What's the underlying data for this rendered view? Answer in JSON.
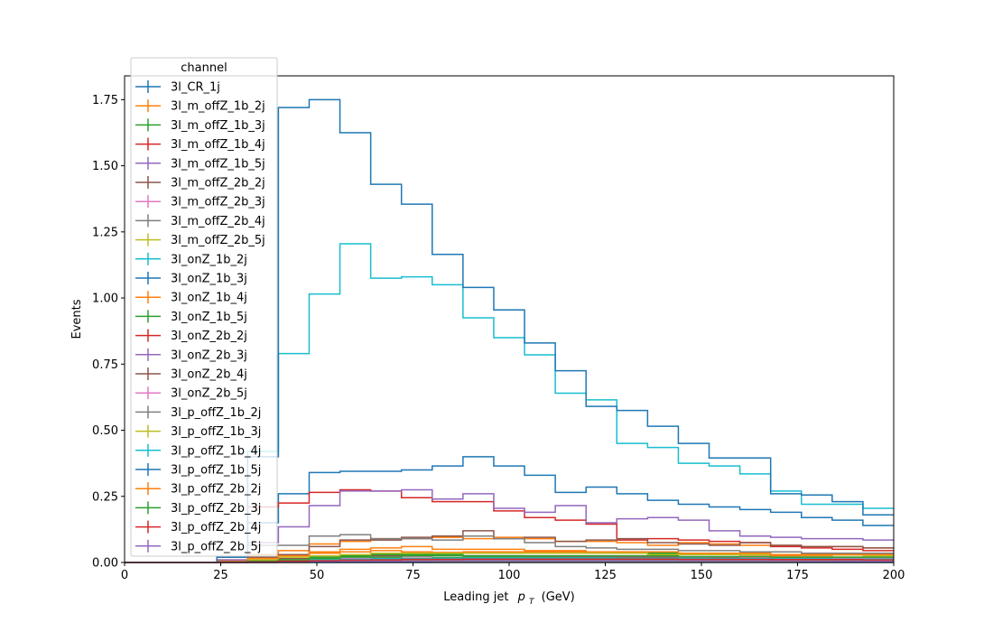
{
  "chart_data": {
    "type": "line",
    "drawstyle": "steps",
    "xlabel": "Leading jet",
    "xlabel_math": "p",
    "xlabel_math_sub": "T",
    "xlabel_unit": "(GeV)",
    "ylabel": "Events",
    "xlim": [
      0,
      200
    ],
    "ylim": [
      0,
      1.84
    ],
    "xticks": [
      "0",
      "25",
      "50",
      "75",
      "100",
      "125",
      "150",
      "175",
      "200"
    ],
    "yticks": [
      "0.00",
      "0.25",
      "0.50",
      "0.75",
      "1.00",
      "1.25",
      "1.50",
      "1.75"
    ],
    "grid": false,
    "legend_title": "channel",
    "legend_position": "top-left",
    "bin_edges": [
      0,
      8,
      16,
      24,
      32,
      40,
      48,
      56,
      64,
      72,
      80,
      88,
      96,
      104,
      112,
      120,
      128,
      136,
      144,
      152,
      160,
      168,
      176,
      184,
      192,
      200
    ],
    "series": [
      {
        "name": "3l_CR_1j",
        "color": "#1f77b4",
        "values": [
          0,
          0,
          0,
          0,
          0,
          0,
          0,
          0,
          0,
          0,
          0,
          0,
          0,
          0,
          0,
          0,
          0,
          0,
          0,
          0,
          0,
          0,
          0,
          0,
          0
        ]
      },
      {
        "name": "3l_m_offZ_1b_2j",
        "color": "#ff7f0e",
        "values": [
          0,
          0,
          0,
          0.005,
          0.02,
          0.03,
          0.035,
          0.04,
          0.045,
          0.04,
          0.038,
          0.04,
          0.04,
          0.04,
          0.04,
          0.035,
          0.035,
          0.03,
          0.03,
          0.03,
          0.028,
          0.025,
          0.025,
          0.02,
          0.02
        ]
      },
      {
        "name": "3l_m_offZ_1b_3j",
        "color": "#2ca02c",
        "values": [
          0,
          0,
          0,
          0,
          0.003,
          0.006,
          0.01,
          0.012,
          0.015,
          0.016,
          0.018,
          0.02,
          0.02,
          0.02,
          0.02,
          0.02,
          0.02,
          0.019,
          0.018,
          0.018,
          0.017,
          0.016,
          0.015,
          0.014,
          0.013
        ]
      },
      {
        "name": "3l_m_offZ_1b_4j",
        "color": "#d62728",
        "values": [
          0,
          0,
          0,
          0,
          0,
          0.002,
          0.003,
          0.005,
          0.006,
          0.008,
          0.009,
          0.01,
          0.011,
          0.012,
          0.012,
          0.012,
          0.012,
          0.012,
          0.012,
          0.012,
          0.011,
          0.011,
          0.01,
          0.01,
          0.01
        ]
      },
      {
        "name": "3l_m_offZ_1b_5j",
        "color": "#9467bd",
        "values": [
          0,
          0,
          0,
          0,
          0,
          0,
          0.001,
          0.002,
          0.003,
          0.004,
          0.004,
          0.005,
          0.005,
          0.006,
          0.006,
          0.006,
          0.006,
          0.006,
          0.006,
          0.006,
          0.006,
          0.006,
          0.005,
          0.005,
          0.005
        ]
      },
      {
        "name": "3l_m_offZ_2b_2j",
        "color": "#8c564b",
        "values": [
          0,
          0,
          0,
          0.002,
          0.01,
          0.015,
          0.02,
          0.022,
          0.025,
          0.025,
          0.025,
          0.025,
          0.025,
          0.024,
          0.023,
          0.022,
          0.021,
          0.02,
          0.019,
          0.018,
          0.017,
          0.016,
          0.015,
          0.014,
          0.013
        ]
      },
      {
        "name": "3l_m_offZ_2b_3j",
        "color": "#e377c2",
        "values": [
          0,
          0,
          0,
          0,
          0.003,
          0.006,
          0.008,
          0.01,
          0.012,
          0.013,
          0.014,
          0.015,
          0.015,
          0.015,
          0.015,
          0.015,
          0.015,
          0.015,
          0.014,
          0.014,
          0.013,
          0.013,
          0.012,
          0.012,
          0.011
        ]
      },
      {
        "name": "3l_m_offZ_2b_4j",
        "color": "#7f7f7f",
        "values": [
          0,
          0,
          0,
          0,
          0,
          0.002,
          0.004,
          0.005,
          0.006,
          0.007,
          0.008,
          0.008,
          0.009,
          0.009,
          0.009,
          0.009,
          0.009,
          0.009,
          0.009,
          0.009,
          0.009,
          0.008,
          0.008,
          0.008,
          0.008
        ]
      },
      {
        "name": "3l_m_offZ_2b_5j",
        "color": "#bcbd22",
        "values": [
          0,
          0,
          0,
          0,
          0,
          0,
          0.001,
          0.002,
          0.002,
          0.003,
          0.003,
          0.003,
          0.004,
          0.004,
          0.004,
          0.004,
          0.004,
          0.004,
          0.004,
          0.004,
          0.004,
          0.004,
          0.004,
          0.003,
          0.003
        ]
      },
      {
        "name": "3l_onZ_1b_2j",
        "color": "#17becf",
        "values": [
          0,
          0,
          0,
          0.02,
          0.42,
          0.79,
          1.015,
          1.205,
          1.075,
          1.08,
          1.05,
          0.925,
          0.85,
          0.785,
          0.64,
          0.615,
          0.45,
          0.435,
          0.375,
          0.365,
          0.335,
          0.27,
          0.22,
          0.22,
          0.205
        ]
      },
      {
        "name": "3l_onZ_1b_3j",
        "color": "#1f77b4",
        "values": [
          0,
          0,
          0,
          0.02,
          0.15,
          0.26,
          0.34,
          0.345,
          0.345,
          0.35,
          0.365,
          0.4,
          0.365,
          0.33,
          0.265,
          0.285,
          0.26,
          0.235,
          0.22,
          0.21,
          0.2,
          0.19,
          0.17,
          0.16,
          0.14
        ]
      },
      {
        "name": "3l_onZ_1b_4j",
        "color": "#ff7f0e",
        "values": [
          0,
          0,
          0,
          0.01,
          0.03,
          0.045,
          0.07,
          0.08,
          0.09,
          0.09,
          0.095,
          0.09,
          0.095,
          0.09,
          0.08,
          0.08,
          0.075,
          0.065,
          0.075,
          0.07,
          0.065,
          0.065,
          0.06,
          0.06,
          0.055
        ]
      },
      {
        "name": "3l_onZ_1b_5j",
        "color": "#2ca02c",
        "values": [
          0,
          0,
          0,
          0,
          0.005,
          0.01,
          0.02,
          0.025,
          0.03,
          0.03,
          0.03,
          0.035,
          0.035,
          0.035,
          0.035,
          0.035,
          0.035,
          0.035,
          0.035,
          0.035,
          0.035,
          0.03,
          0.03,
          0.03,
          0.03
        ]
      },
      {
        "name": "3l_onZ_2b_2j",
        "color": "#d62728",
        "values": [
          0,
          0,
          0,
          0.02,
          0.21,
          0.225,
          0.265,
          0.275,
          0.27,
          0.245,
          0.23,
          0.23,
          0.195,
          0.17,
          0.16,
          0.145,
          0.085,
          0.09,
          0.085,
          0.08,
          0.075,
          0.06,
          0.055,
          0.05,
          0.045
        ]
      },
      {
        "name": "3l_onZ_2b_3j",
        "color": "#9467bd",
        "values": [
          0,
          0,
          0,
          0.01,
          0.075,
          0.135,
          0.215,
          0.27,
          0.27,
          0.275,
          0.24,
          0.26,
          0.205,
          0.19,
          0.215,
          0.15,
          0.165,
          0.17,
          0.16,
          0.12,
          0.1,
          0.095,
          0.09,
          0.09,
          0.085
        ]
      },
      {
        "name": "3l_onZ_2b_4j",
        "color": "#8c564b",
        "values": [
          0,
          0,
          0,
          0,
          0.02,
          0.03,
          0.06,
          0.085,
          0.085,
          0.095,
          0.1,
          0.12,
          0.09,
          0.095,
          0.08,
          0.085,
          0.09,
          0.075,
          0.07,
          0.065,
          0.075,
          0.065,
          0.06,
          0.06,
          0.055
        ]
      },
      {
        "name": "3l_onZ_2b_5j",
        "color": "#e377c2",
        "values": [
          0,
          0,
          0,
          0,
          0.003,
          0.005,
          0.01,
          0.015,
          0.02,
          0.022,
          0.025,
          0.025,
          0.025,
          0.025,
          0.025,
          0.025,
          0.025,
          0.025,
          0.022,
          0.022,
          0.02,
          0.02,
          0.02,
          0.018,
          0.018
        ]
      },
      {
        "name": "3l_p_offZ_1b_2j",
        "color": "#7f7f7f",
        "values": [
          0,
          0,
          0,
          0.02,
          0.065,
          0.065,
          0.1,
          0.105,
          0.09,
          0.09,
          0.085,
          0.1,
          0.09,
          0.075,
          0.06,
          0.055,
          0.05,
          0.05,
          0.045,
          0.045,
          0.04,
          0.04,
          0.035,
          0.035,
          0.035
        ]
      },
      {
        "name": "3l_p_offZ_1b_3j",
        "color": "#bcbd22",
        "values": [
          0,
          0,
          0,
          0,
          0.01,
          0.02,
          0.025,
          0.03,
          0.035,
          0.035,
          0.035,
          0.035,
          0.035,
          0.035,
          0.035,
          0.035,
          0.035,
          0.03,
          0.03,
          0.03,
          0.03,
          0.03,
          0.028,
          0.028,
          0.025
        ]
      },
      {
        "name": "3l_p_offZ_1b_4j",
        "color": "#17becf",
        "values": [
          0,
          0,
          0,
          0,
          0.004,
          0.007,
          0.01,
          0.012,
          0.014,
          0.015,
          0.016,
          0.017,
          0.017,
          0.017,
          0.017,
          0.017,
          0.016,
          0.016,
          0.016,
          0.015,
          0.015,
          0.014,
          0.014,
          0.013,
          0.013
        ]
      },
      {
        "name": "3l_p_offZ_1b_5j",
        "color": "#1f77b4",
        "values": [
          0,
          0,
          0,
          0.02,
          0.4,
          1.72,
          1.75,
          1.625,
          1.43,
          1.355,
          1.165,
          1.04,
          0.955,
          0.83,
          0.725,
          0.59,
          0.575,
          0.515,
          0.45,
          0.395,
          0.395,
          0.26,
          0.255,
          0.23,
          0.18
        ]
      },
      {
        "name": "3l_p_offZ_2b_2j",
        "color": "#ff7f0e",
        "values": [
          0,
          0,
          0,
          0,
          0.015,
          0.025,
          0.04,
          0.05,
          0.055,
          0.06,
          0.05,
          0.05,
          0.05,
          0.045,
          0.045,
          0.04,
          0.04,
          0.04,
          0.035,
          0.035,
          0.035,
          0.03,
          0.03,
          0.03,
          0.03
        ]
      },
      {
        "name": "3l_p_offZ_2b_3j",
        "color": "#2ca02c",
        "values": [
          0,
          0,
          0,
          0,
          0.005,
          0.01,
          0.015,
          0.02,
          0.02,
          0.025,
          0.025,
          0.025,
          0.025,
          0.025,
          0.025,
          0.025,
          0.025,
          0.025,
          0.022,
          0.022,
          0.022,
          0.02,
          0.02,
          0.02,
          0.02
        ]
      },
      {
        "name": "3l_p_offZ_2b_4j",
        "color": "#d62728",
        "values": [
          0,
          0,
          0,
          0,
          0.002,
          0.005,
          0.007,
          0.009,
          0.01,
          0.012,
          0.012,
          0.013,
          0.013,
          0.013,
          0.013,
          0.013,
          0.013,
          0.013,
          0.012,
          0.012,
          0.012,
          0.011,
          0.011,
          0.011,
          0.01
        ]
      },
      {
        "name": "3l_p_offZ_2b_5j",
        "color": "#9467bd",
        "values": [
          0,
          0,
          0,
          0,
          0,
          0.001,
          0.002,
          0.003,
          0.004,
          0.004,
          0.005,
          0.005,
          0.005,
          0.005,
          0.005,
          0.005,
          0.005,
          0.005,
          0.005,
          0.005,
          0.005,
          0.005,
          0.004,
          0.004,
          0.004
        ]
      }
    ]
  }
}
